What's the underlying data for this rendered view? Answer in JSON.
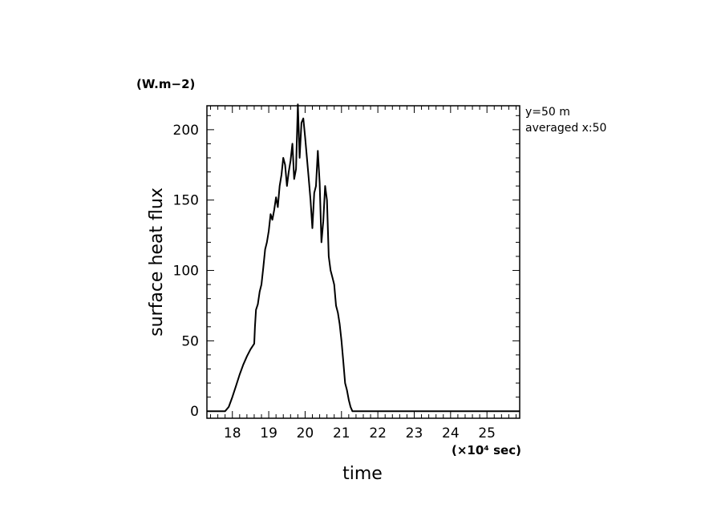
{
  "chart_data": {
    "type": "line",
    "title": "",
    "xlabel": "time",
    "ylabel": "surface heat flux",
    "x_unit": "(×10⁴ sec)",
    "y_unit": "(W.m−2)",
    "xlim": [
      17.3,
      25.9
    ],
    "ylim": [
      -5,
      217
    ],
    "x_ticks": [
      "18",
      "19",
      "20",
      "21",
      "22",
      "23",
      "24",
      "25"
    ],
    "y_ticks": [
      "0",
      "50",
      "100",
      "150",
      "200"
    ],
    "annotations": [
      "y=50 m",
      "averaged  x:50"
    ],
    "grid": false,
    "series": [
      {
        "x": [
          17.3,
          17.8,
          17.9,
          18.0,
          18.1,
          18.2,
          18.3,
          18.4,
          18.5,
          18.6,
          18.62,
          18.65,
          18.7,
          18.75,
          18.8,
          18.85,
          18.9,
          18.95,
          19.0,
          19.05,
          19.1,
          19.15,
          19.2,
          19.25,
          19.3,
          19.35,
          19.4,
          19.45,
          19.5,
          19.55,
          19.6,
          19.65,
          19.7,
          19.75,
          19.8,
          19.85,
          19.9,
          19.95,
          20.0,
          20.05,
          20.1,
          20.15,
          20.2,
          20.25,
          20.3,
          20.35,
          20.4,
          20.45,
          20.5,
          20.55,
          20.6,
          20.65,
          20.7,
          20.75,
          20.8,
          20.85,
          20.9,
          20.95,
          21.0,
          21.05,
          21.1,
          21.15,
          21.2,
          21.25,
          21.3,
          21.35,
          21.4,
          21.45,
          21.5,
          21.55,
          21.6,
          22.0,
          23.0,
          24.0,
          25.0,
          25.9
        ],
        "y": [
          0,
          0,
          3,
          10,
          18,
          26,
          33,
          39,
          44,
          48,
          60,
          72,
          76,
          85,
          90,
          102,
          115,
          120,
          128,
          140,
          136,
          143,
          152,
          145,
          160,
          168,
          180,
          175,
          160,
          170,
          178,
          190,
          165,
          172,
          218,
          180,
          205,
          208,
          195,
          180,
          165,
          150,
          130,
          155,
          160,
          185,
          162,
          120,
          135,
          160,
          150,
          110,
          100,
          95,
          90,
          75,
          70,
          62,
          50,
          35,
          20,
          15,
          8,
          3,
          0,
          0,
          0,
          0,
          0,
          0,
          0,
          0,
          0,
          0,
          0,
          0
        ]
      }
    ]
  }
}
